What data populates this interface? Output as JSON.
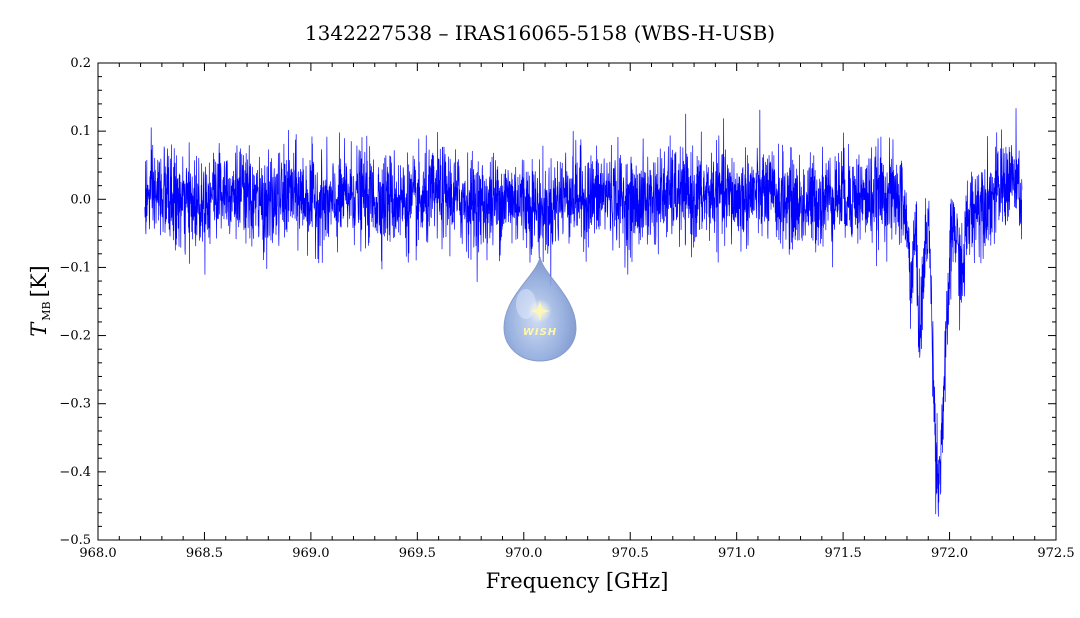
{
  "chart_data": {
    "type": "line",
    "title": "1342227538 – IRAS16065-5158 (WBS-H-USB)",
    "xlabel": "Frequency [GHz]",
    "ylabel_main": "T",
    "ylabel_sub": "MB",
    "ylabel_unit": "[K]",
    "xlim": [
      968.0,
      972.5
    ],
    "ylim": [
      -0.5,
      0.2
    ],
    "xticks": [
      968.0,
      968.5,
      969.0,
      969.5,
      970.0,
      970.5,
      971.0,
      971.5,
      972.0,
      972.5
    ],
    "xtick_labels": [
      "968.0",
      "968.5",
      "969.0",
      "969.5",
      "970.0",
      "970.5",
      "971.0",
      "971.5",
      "972.0",
      "972.5"
    ],
    "yticks": [
      -0.5,
      -0.4,
      -0.3,
      -0.2,
      -0.1,
      0.0,
      0.1,
      0.2
    ],
    "ytick_labels": [
      "−0.5",
      "−0.4",
      "−0.3",
      "−0.2",
      "−0.1",
      "0.0",
      "0.1",
      "0.2"
    ],
    "grid": false,
    "line_color": "#0000ff",
    "series": [
      {
        "x": [
          968.22,
          968.3,
          968.4,
          968.5,
          968.6,
          968.7,
          968.8,
          968.9,
          969.0,
          969.1,
          969.2,
          969.3,
          969.4,
          969.5,
          969.6,
          969.7,
          969.8,
          969.9,
          970.0,
          970.1,
          970.2,
          970.3,
          970.4,
          970.5,
          970.6,
          970.7,
          970.8,
          970.9,
          971.0,
          971.1,
          971.2,
          971.3,
          971.4,
          971.5,
          971.6,
          971.7,
          971.75,
          971.78,
          971.8,
          971.82,
          971.84,
          971.86,
          971.88,
          971.9,
          971.92,
          971.93,
          971.94,
          971.95,
          971.96,
          971.98,
          972.0,
          972.02,
          972.04,
          972.06,
          972.08,
          972.1,
          972.15,
          972.2,
          972.25,
          972.3,
          972.34
        ],
        "y": [
          0.0,
          0.01,
          -0.01,
          0.0,
          0.02,
          0.0,
          -0.01,
          0.01,
          0.0,
          -0.01,
          0.01,
          0.0,
          0.0,
          -0.01,
          0.01,
          0.0,
          -0.01,
          0.0,
          0.0,
          -0.02,
          0.01,
          0.0,
          0.01,
          -0.01,
          0.0,
          0.01,
          0.0,
          0.01,
          0.0,
          0.01,
          0.0,
          -0.01,
          0.0,
          0.01,
          0.0,
          0.01,
          0.0,
          0.0,
          -0.05,
          -0.12,
          -0.05,
          -0.2,
          -0.1,
          -0.02,
          -0.2,
          -0.33,
          -0.38,
          -0.42,
          -0.36,
          -0.25,
          -0.1,
          -0.03,
          -0.08,
          -0.12,
          -0.04,
          -0.02,
          0.0,
          0.0,
          0.02,
          0.03,
          0.0
        ]
      }
    ]
  },
  "logo": {
    "text": "WISH"
  }
}
